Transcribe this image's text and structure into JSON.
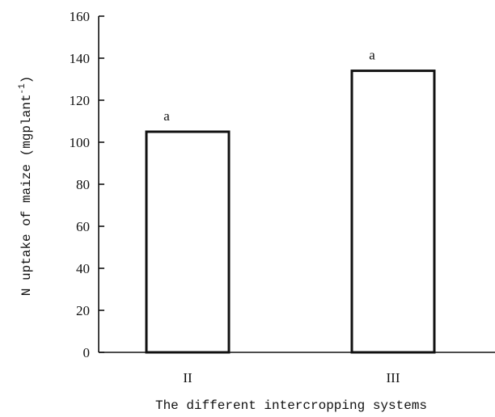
{
  "chart_data": {
    "type": "bar",
    "categories": [
      "II",
      "III"
    ],
    "values": [
      105,
      134
    ],
    "data_labels": [
      "a",
      "a"
    ],
    "title": "",
    "xlabel": "The different intercropping systems",
    "ylabel": "N uptake of maize (mgplant",
    "ylabel_superscript": "-1",
    "ylabel_suffix": ")",
    "ylim": [
      0,
      160
    ],
    "yticks": [
      0,
      20,
      40,
      60,
      80,
      100,
      120,
      140,
      160
    ],
    "grid": false,
    "legend": "none",
    "colors": {
      "bar_fill": "#ffffff",
      "bar_stroke": "#111111",
      "axis": "#111111"
    }
  }
}
